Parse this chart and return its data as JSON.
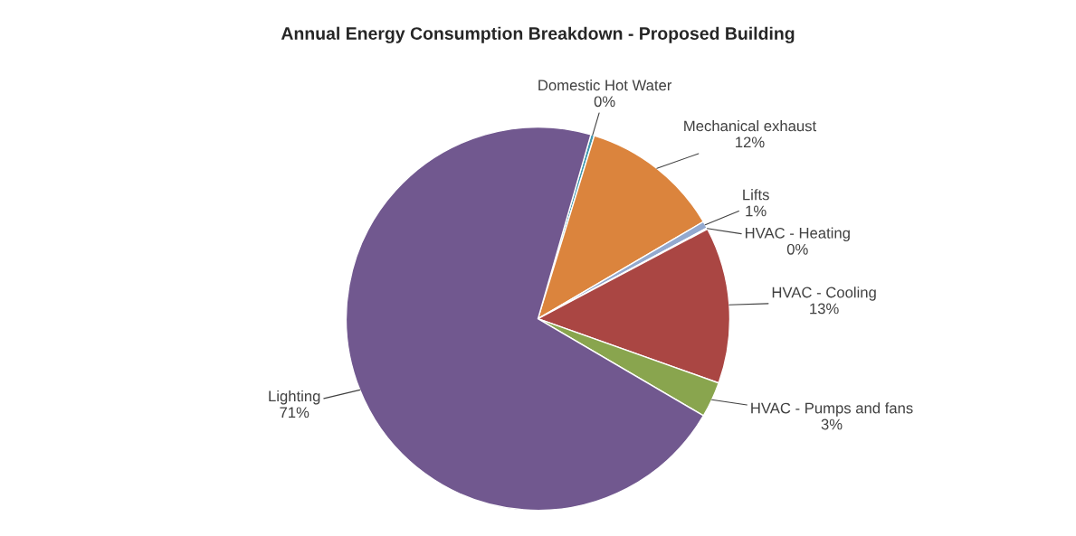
{
  "chart_data": {
    "type": "pie",
    "title": "Annual Energy Consumption Breakdown - Proposed Building",
    "categories": [
      "Domestic Hot Water",
      "Mechanical exhaust",
      "Lifts",
      "HVAC - Heating",
      "HVAC - Cooling",
      "HVAC - Pumps and fans",
      "Lighting"
    ],
    "values": [
      0.3,
      11.8,
      0.6,
      0.1,
      13.2,
      3.0,
      71.0
    ],
    "value_labels": [
      "0%",
      "12%",
      "1%",
      "0%",
      "13%",
      "3%",
      "71%"
    ],
    "colors": [
      "#4198af",
      "#db843d",
      "#93a9cf",
      "#b9cde5",
      "#aa4643",
      "#89a54e",
      "#71588f"
    ]
  }
}
